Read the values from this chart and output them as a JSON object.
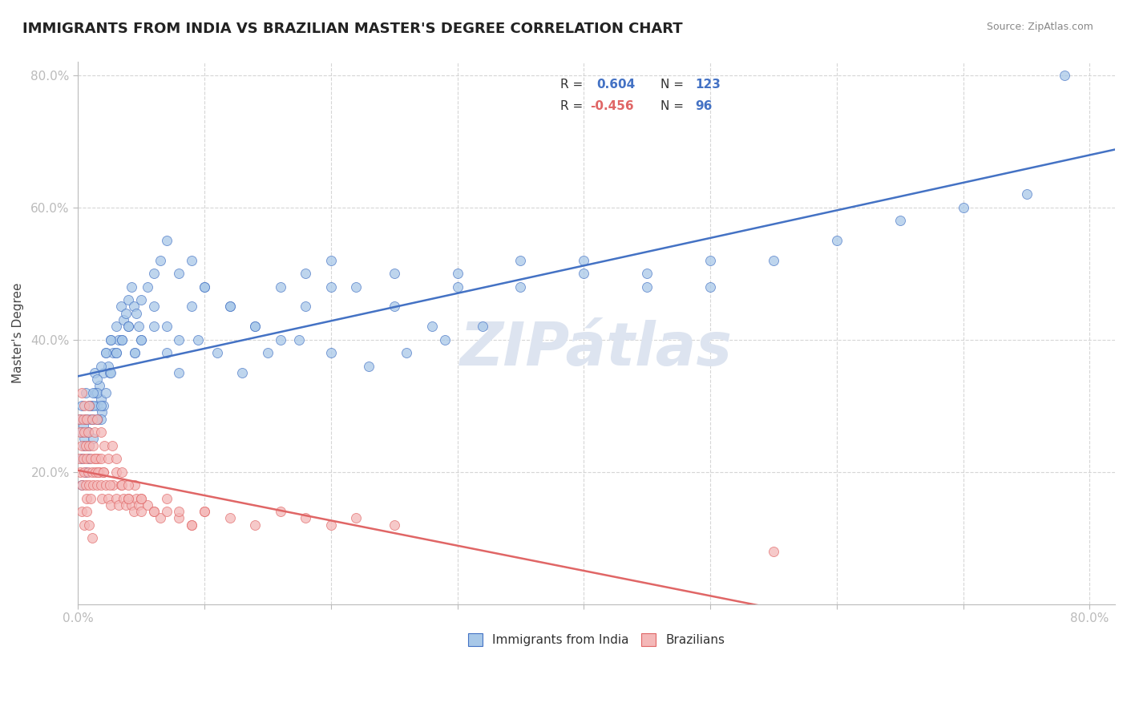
{
  "title": "IMMIGRANTS FROM INDIA VS BRAZILIAN MASTER'S DEGREE CORRELATION CHART",
  "source": "Source: ZipAtlas.com",
  "ylabel": "Master's Degree",
  "xlim": [
    0.0,
    0.82
  ],
  "ylim": [
    0.0,
    0.82
  ],
  "legend_R1": "0.604",
  "legend_N1": "123",
  "legend_R2": "-0.456",
  "legend_N2": "96",
  "series1_label": "Immigrants from India",
  "series2_label": "Brazilians",
  "color_blue_fill": "#a8c8e8",
  "color_pink_fill": "#f4b8b8",
  "color_blue_edge": "#4472c4",
  "color_pink_edge": "#e06666",
  "color_blue_line": "#4472c4",
  "color_pink_line": "#e06666",
  "color_title": "#222222",
  "color_source": "#888888",
  "color_axis_label": "#4472c4",
  "watermark_color": "#dde4f0",
  "background_color": "#ffffff",
  "grid_color": "#cccccc",
  "india_x": [
    0.002,
    0.003,
    0.004,
    0.005,
    0.006,
    0.007,
    0.008,
    0.009,
    0.01,
    0.012,
    0.013,
    0.014,
    0.015,
    0.016,
    0.017,
    0.018,
    0.019,
    0.02,
    0.022,
    0.024,
    0.026,
    0.028,
    0.03,
    0.032,
    0.034,
    0.036,
    0.038,
    0.04,
    0.042,
    0.044,
    0.046,
    0.048,
    0.05,
    0.055,
    0.06,
    0.065,
    0.07,
    0.08,
    0.09,
    0.1,
    0.12,
    0.14,
    0.16,
    0.18,
    0.2,
    0.22,
    0.25,
    0.28,
    0.3,
    0.35,
    0.4,
    0.45,
    0.5,
    0.55,
    0.6,
    0.65,
    0.7,
    0.75,
    0.78,
    0.003,
    0.005,
    0.008,
    0.01,
    0.012,
    0.015,
    0.018,
    0.02,
    0.025,
    0.03,
    0.035,
    0.04,
    0.045,
    0.05,
    0.06,
    0.07,
    0.08,
    0.09,
    0.1,
    0.12,
    0.14,
    0.16,
    0.18,
    0.2,
    0.25,
    0.3,
    0.35,
    0.4,
    0.45,
    0.5,
    0.003,
    0.006,
    0.009,
    0.012,
    0.015,
    0.018,
    0.022,
    0.026,
    0.03,
    0.035,
    0.04,
    0.045,
    0.05,
    0.06,
    0.07,
    0.08,
    0.095,
    0.11,
    0.13,
    0.15,
    0.175,
    0.2,
    0.23,
    0.26,
    0.29,
    0.32,
    0.006,
    0.009,
    0.012,
    0.015,
    0.018,
    0.022,
    0.026,
    0.003
  ],
  "india_y": [
    0.28,
    0.3,
    0.27,
    0.25,
    0.32,
    0.28,
    0.26,
    0.24,
    0.3,
    0.28,
    0.35,
    0.32,
    0.3,
    0.28,
    0.33,
    0.31,
    0.29,
    0.35,
    0.38,
    0.36,
    0.4,
    0.38,
    0.42,
    0.4,
    0.45,
    0.43,
    0.44,
    0.46,
    0.48,
    0.45,
    0.44,
    0.42,
    0.46,
    0.48,
    0.5,
    0.52,
    0.55,
    0.5,
    0.52,
    0.48,
    0.45,
    0.42,
    0.48,
    0.5,
    0.52,
    0.48,
    0.45,
    0.42,
    0.5,
    0.48,
    0.52,
    0.5,
    0.48,
    0.52,
    0.55,
    0.58,
    0.6,
    0.62,
    0.8,
    0.22,
    0.24,
    0.26,
    0.28,
    0.3,
    0.32,
    0.28,
    0.3,
    0.35,
    0.38,
    0.4,
    0.42,
    0.38,
    0.4,
    0.45,
    0.42,
    0.4,
    0.45,
    0.48,
    0.45,
    0.42,
    0.4,
    0.45,
    0.48,
    0.5,
    0.48,
    0.52,
    0.5,
    0.48,
    0.52,
    0.18,
    0.2,
    0.22,
    0.25,
    0.28,
    0.3,
    0.32,
    0.35,
    0.38,
    0.4,
    0.42,
    0.38,
    0.4,
    0.42,
    0.38,
    0.35,
    0.4,
    0.38,
    0.35,
    0.38,
    0.4,
    0.38,
    0.36,
    0.38,
    0.4,
    0.42,
    0.28,
    0.3,
    0.32,
    0.34,
    0.36,
    0.38,
    0.4,
    0.26
  ],
  "brazil_x": [
    0.001,
    0.002,
    0.003,
    0.004,
    0.005,
    0.006,
    0.007,
    0.008,
    0.009,
    0.01,
    0.011,
    0.012,
    0.013,
    0.014,
    0.015,
    0.016,
    0.017,
    0.018,
    0.019,
    0.02,
    0.022,
    0.024,
    0.026,
    0.028,
    0.03,
    0.032,
    0.034,
    0.036,
    0.038,
    0.04,
    0.042,
    0.044,
    0.046,
    0.048,
    0.05,
    0.055,
    0.06,
    0.065,
    0.07,
    0.08,
    0.09,
    0.1,
    0.12,
    0.14,
    0.16,
    0.18,
    0.2,
    0.22,
    0.25,
    0.001,
    0.002,
    0.003,
    0.004,
    0.005,
    0.006,
    0.007,
    0.008,
    0.009,
    0.01,
    0.012,
    0.014,
    0.016,
    0.018,
    0.02,
    0.025,
    0.03,
    0.035,
    0.04,
    0.045,
    0.05,
    0.06,
    0.07,
    0.08,
    0.09,
    0.1,
    0.003,
    0.005,
    0.007,
    0.009,
    0.011,
    0.013,
    0.015,
    0.018,
    0.021,
    0.024,
    0.027,
    0.03,
    0.035,
    0.04,
    0.05,
    0.003,
    0.005,
    0.007,
    0.009,
    0.011,
    0.55
  ],
  "brazil_y": [
    0.22,
    0.2,
    0.18,
    0.22,
    0.2,
    0.18,
    0.16,
    0.2,
    0.18,
    0.16,
    0.2,
    0.18,
    0.22,
    0.2,
    0.18,
    0.22,
    0.2,
    0.18,
    0.16,
    0.2,
    0.18,
    0.16,
    0.15,
    0.18,
    0.16,
    0.15,
    0.18,
    0.16,
    0.15,
    0.16,
    0.15,
    0.14,
    0.16,
    0.15,
    0.14,
    0.15,
    0.14,
    0.13,
    0.14,
    0.13,
    0.12,
    0.14,
    0.13,
    0.12,
    0.14,
    0.13,
    0.12,
    0.13,
    0.12,
    0.28,
    0.26,
    0.24,
    0.28,
    0.26,
    0.24,
    0.22,
    0.26,
    0.24,
    0.22,
    0.24,
    0.22,
    0.2,
    0.22,
    0.2,
    0.18,
    0.2,
    0.18,
    0.16,
    0.18,
    0.16,
    0.14,
    0.16,
    0.14,
    0.12,
    0.14,
    0.32,
    0.3,
    0.28,
    0.3,
    0.28,
    0.26,
    0.28,
    0.26,
    0.24,
    0.22,
    0.24,
    0.22,
    0.2,
    0.18,
    0.16,
    0.14,
    0.12,
    0.14,
    0.12,
    0.1,
    0.08
  ]
}
